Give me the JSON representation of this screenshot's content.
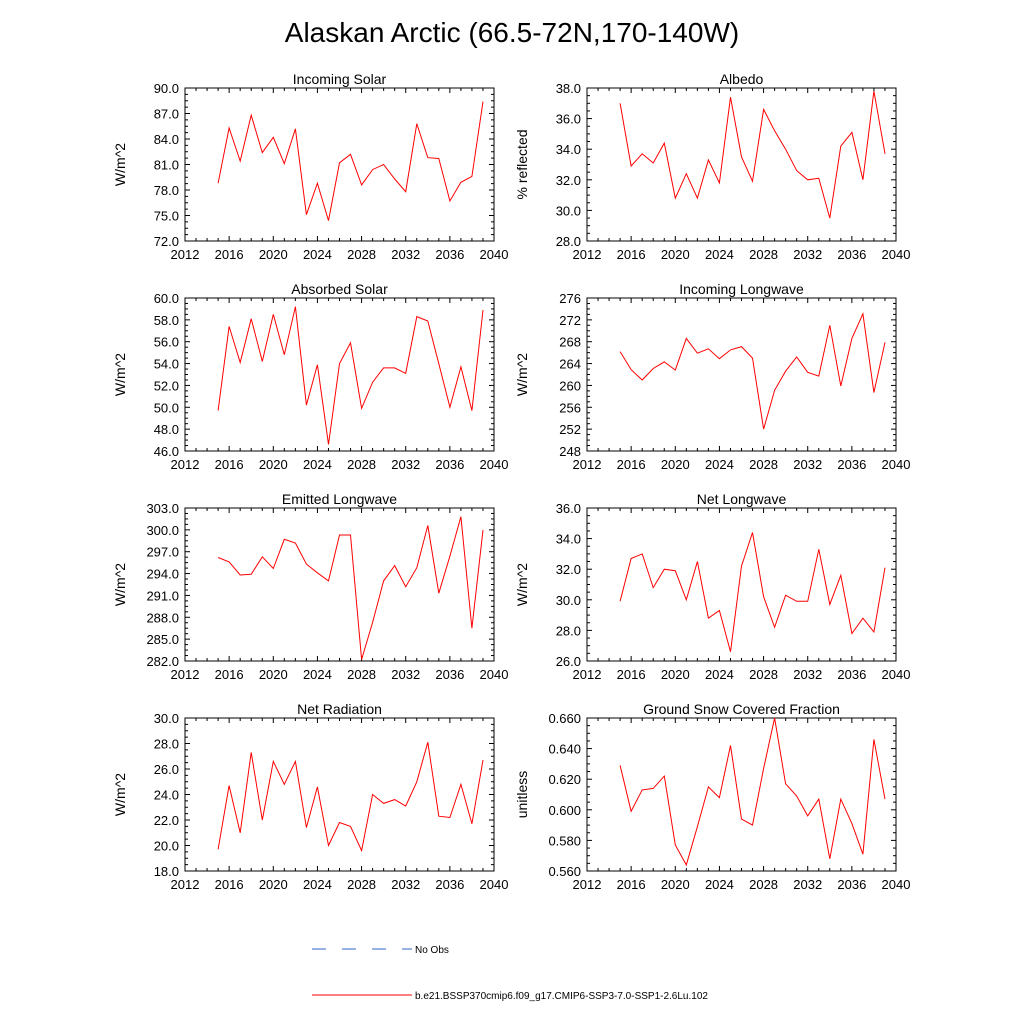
{
  "title": "Alaskan Arctic (66.5-72N,170-140W)",
  "legend": {
    "no_obs_label": "No Obs",
    "model_label": "b.e21.BSSP370cmip6.f09_g17.CMIP6-SSP3-7.0-SSP1-2.6Lu.102",
    "model_color": "#ff0000",
    "no_obs_color": "#3366cc"
  },
  "chart_data": [
    {
      "type": "line",
      "title": "Incoming Solar",
      "ylabel": "W/m^2",
      "xlim": [
        2012,
        2040
      ],
      "ylim": [
        72.0,
        90.0
      ],
      "xticks": [
        "2012",
        "2016",
        "2020",
        "2024",
        "2028",
        "2032",
        "2036",
        "2040"
      ],
      "yticks": [
        "72.0",
        "75.0",
        "78.0",
        "81.0",
        "84.0",
        "87.0",
        "90.0"
      ],
      "x": [
        2015,
        2016,
        2017,
        2018,
        2019,
        2020,
        2021,
        2022,
        2023,
        2024,
        2025,
        2026,
        2027,
        2028,
        2029,
        2030,
        2031,
        2032,
        2033,
        2034,
        2035,
        2036,
        2037,
        2038,
        2039
      ],
      "y": [
        78.8,
        85.3,
        81.4,
        86.8,
        82.4,
        84.2,
        81.1,
        85.2,
        75.1,
        78.8,
        74.4,
        81.2,
        82.2,
        78.6,
        80.4,
        81.0,
        79.3,
        77.8,
        85.8,
        81.8,
        81.7,
        76.7,
        78.9,
        79.6,
        88.4
      ]
    },
    {
      "type": "line",
      "title": "Albedo",
      "ylabel": "% reflected",
      "xlim": [
        2012,
        2040
      ],
      "ylim": [
        28.0,
        38.0
      ],
      "xticks": [
        "2012",
        "2016",
        "2020",
        "2024",
        "2028",
        "2032",
        "2036",
        "2040"
      ],
      "yticks": [
        "28.0",
        "30.0",
        "32.0",
        "34.0",
        "36.0",
        "38.0"
      ],
      "x": [
        2015,
        2016,
        2017,
        2018,
        2019,
        2020,
        2021,
        2022,
        2023,
        2024,
        2025,
        2026,
        2027,
        2028,
        2029,
        2030,
        2031,
        2032,
        2033,
        2034,
        2035,
        2036,
        2037,
        2038,
        2039
      ],
      "y": [
        37.0,
        32.9,
        33.7,
        33.1,
        34.4,
        30.8,
        32.4,
        30.8,
        33.3,
        31.8,
        37.4,
        33.5,
        31.9,
        36.6,
        35.2,
        34.0,
        32.6,
        32.0,
        32.1,
        29.5,
        34.2,
        35.1,
        32.0,
        37.8,
        33.7
      ]
    },
    {
      "type": "line",
      "title": "Absorbed Solar",
      "ylabel": "W/m^2",
      "xlim": [
        2012,
        2040
      ],
      "ylim": [
        46.0,
        60.0
      ],
      "xticks": [
        "2012",
        "2016",
        "2020",
        "2024",
        "2028",
        "2032",
        "2036",
        "2040"
      ],
      "yticks": [
        "46.0",
        "48.0",
        "50.0",
        "52.0",
        "54.0",
        "56.0",
        "58.0",
        "60.0"
      ],
      "x": [
        2015,
        2016,
        2017,
        2018,
        2019,
        2020,
        2021,
        2022,
        2023,
        2024,
        2025,
        2026,
        2027,
        2028,
        2029,
        2030,
        2031,
        2032,
        2033,
        2034,
        2035,
        2036,
        2037,
        2038,
        2039
      ],
      "y": [
        49.7,
        57.4,
        54.1,
        58.1,
        54.2,
        58.5,
        54.8,
        59.2,
        50.2,
        53.9,
        46.6,
        54.0,
        55.9,
        49.9,
        52.3,
        53.6,
        53.6,
        53.1,
        58.3,
        57.9,
        54.0,
        50.0,
        53.7,
        49.7,
        58.9
      ]
    },
    {
      "type": "line",
      "title": "Incoming Longwave",
      "ylabel": "W/m^2",
      "xlim": [
        2012,
        2040
      ],
      "ylim": [
        248,
        276
      ],
      "xticks": [
        "2012",
        "2016",
        "2020",
        "2024",
        "2028",
        "2032",
        "2036",
        "2040"
      ],
      "yticks": [
        "248",
        "252",
        "256",
        "260",
        "264",
        "268",
        "272",
        "276"
      ],
      "x": [
        2015,
        2016,
        2017,
        2018,
        2019,
        2020,
        2021,
        2022,
        2023,
        2024,
        2025,
        2026,
        2027,
        2028,
        2029,
        2030,
        2031,
        2032,
        2033,
        2034,
        2035,
        2036,
        2037,
        2038,
        2039
      ],
      "y": [
        266.2,
        262.9,
        261.0,
        263.1,
        264.3,
        262.8,
        268.6,
        265.9,
        266.7,
        264.9,
        266.5,
        267.1,
        265.0,
        252.0,
        259.1,
        262.6,
        265.2,
        262.4,
        261.7,
        271.0,
        259.9,
        268.6,
        273.1,
        258.7,
        267.9
      ]
    },
    {
      "type": "line",
      "title": "Emitted Longwave",
      "ylabel": "W/m^2",
      "xlim": [
        2012,
        2040
      ],
      "ylim": [
        282.0,
        303.0
      ],
      "xticks": [
        "2012",
        "2016",
        "2020",
        "2024",
        "2028",
        "2032",
        "2036",
        "2040"
      ],
      "yticks": [
        "282.0",
        "285.0",
        "288.0",
        "291.0",
        "294.0",
        "297.0",
        "300.0",
        "303.0"
      ],
      "x": [
        2015,
        2016,
        2017,
        2018,
        2019,
        2020,
        2021,
        2022,
        2023,
        2024,
        2025,
        2026,
        2027,
        2028,
        2029,
        2030,
        2031,
        2032,
        2033,
        2034,
        2035,
        2036,
        2037,
        2038,
        2039
      ],
      "y": [
        296.2,
        295.6,
        293.8,
        293.9,
        296.3,
        294.7,
        298.7,
        298.2,
        295.3,
        294.1,
        293.0,
        299.3,
        299.3,
        282.2,
        287.3,
        293.0,
        295.1,
        292.2,
        294.8,
        300.6,
        291.3,
        296.4,
        301.8,
        286.5,
        300.0
      ]
    },
    {
      "type": "line",
      "title": "Net Longwave",
      "ylabel": "W/m^2",
      "xlim": [
        2012,
        2040
      ],
      "ylim": [
        26.0,
        36.0
      ],
      "xticks": [
        "2012",
        "2016",
        "2020",
        "2024",
        "2028",
        "2032",
        "2036",
        "2040"
      ],
      "yticks": [
        "26.0",
        "28.0",
        "30.0",
        "32.0",
        "34.0",
        "36.0"
      ],
      "x": [
        2015,
        2016,
        2017,
        2018,
        2019,
        2020,
        2021,
        2022,
        2023,
        2024,
        2025,
        2026,
        2027,
        2028,
        2029,
        2030,
        2031,
        2032,
        2033,
        2034,
        2035,
        2036,
        2037,
        2038,
        2039
      ],
      "y": [
        29.9,
        32.7,
        33.0,
        30.8,
        32.0,
        31.9,
        30.0,
        32.5,
        28.8,
        29.3,
        26.6,
        32.2,
        34.4,
        30.2,
        28.2,
        30.3,
        29.9,
        29.9,
        33.3,
        29.7,
        31.6,
        27.8,
        28.8,
        27.9,
        32.1
      ]
    },
    {
      "type": "line",
      "title": "Net Radiation",
      "ylabel": "W/m^2",
      "xlim": [
        2012,
        2040
      ],
      "ylim": [
        18.0,
        30.0
      ],
      "xticks": [
        "2012",
        "2016",
        "2020",
        "2024",
        "2028",
        "2032",
        "2036",
        "2040"
      ],
      "yticks": [
        "18.0",
        "20.0",
        "22.0",
        "24.0",
        "26.0",
        "28.0",
        "30.0"
      ],
      "x": [
        2015,
        2016,
        2017,
        2018,
        2019,
        2020,
        2021,
        2022,
        2023,
        2024,
        2025,
        2026,
        2027,
        2028,
        2029,
        2030,
        2031,
        2032,
        2033,
        2034,
        2035,
        2036,
        2037,
        2038,
        2039
      ],
      "y": [
        19.7,
        24.7,
        21.0,
        27.3,
        22.0,
        26.6,
        24.8,
        26.6,
        21.4,
        24.6,
        20.0,
        21.8,
        21.5,
        19.6,
        24.0,
        23.3,
        23.6,
        23.1,
        25.0,
        28.1,
        22.3,
        22.2,
        24.8,
        21.7,
        26.7
      ]
    },
    {
      "type": "line",
      "title": "Ground Snow Covered Fraction",
      "ylabel": "unitless",
      "xlim": [
        2012,
        2040
      ],
      "ylim": [
        0.56,
        0.66
      ],
      "xticks": [
        "2012",
        "2016",
        "2020",
        "2024",
        "2028",
        "2032",
        "2036",
        "2040"
      ],
      "yticks": [
        "0.560",
        "0.580",
        "0.600",
        "0.620",
        "0.640",
        "0.660"
      ],
      "x": [
        2015,
        2016,
        2017,
        2018,
        2019,
        2020,
        2021,
        2022,
        2023,
        2024,
        2025,
        2026,
        2027,
        2028,
        2029,
        2030,
        2031,
        2032,
        2033,
        2034,
        2035,
        2036,
        2037,
        2038,
        2039
      ],
      "y": [
        0.629,
        0.599,
        0.613,
        0.614,
        0.622,
        0.577,
        0.564,
        0.589,
        0.615,
        0.608,
        0.642,
        0.594,
        0.59,
        0.627,
        0.66,
        0.617,
        0.609,
        0.596,
        0.607,
        0.568,
        0.607,
        0.591,
        0.571,
        0.646,
        0.607
      ]
    }
  ]
}
